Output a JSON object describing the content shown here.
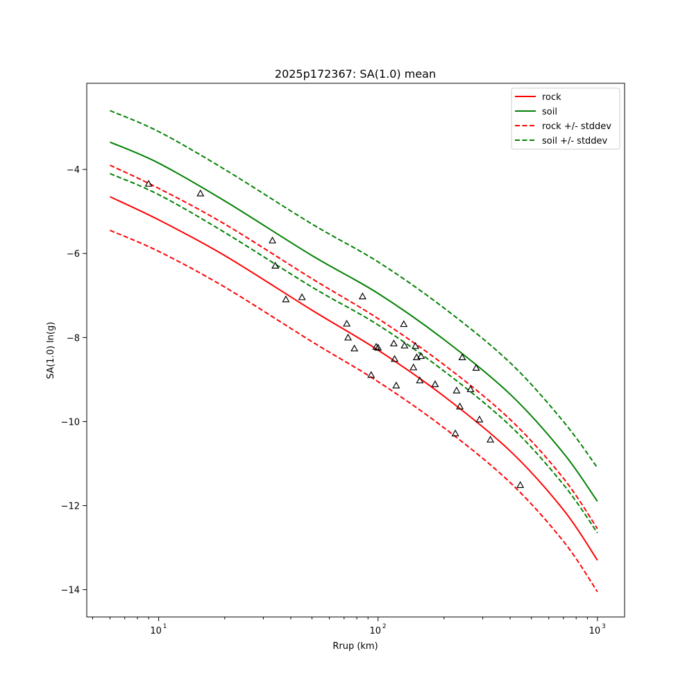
{
  "chart_data": {
    "type": "line",
    "title": "2025p172367: SA(1.0) mean",
    "xlabel": "Rrup (km)",
    "ylabel": "SA(1.0) ln(g)",
    "xscale": "log",
    "xlim": [
      4.7,
      1330
    ],
    "ylim": [
      -14.65,
      -1.95
    ],
    "xticks": [
      10,
      100,
      1000
    ],
    "xtick_labels": [
      "10",
      "10",
      "10"
    ],
    "xtick_exponents": [
      "1",
      "2",
      "3"
    ],
    "yticks": [
      -14,
      -12,
      -10,
      -8,
      -6,
      -4
    ],
    "ytick_labels": [
      "−14",
      "−12",
      "−10",
      "−8",
      "−6",
      "−4"
    ],
    "grid": false,
    "legend_position": "top-right",
    "colors": {
      "rock": "#ff0000",
      "soil": "#008000",
      "markers": "#000000"
    },
    "series": [
      {
        "name": "rock",
        "style": "solid",
        "color": "#ff0000",
        "x": [
          6,
          10,
          20,
          50,
          100,
          200,
          400,
          700,
          1000
        ],
        "y": [
          -4.65,
          -5.2,
          -6.05,
          -7.35,
          -8.3,
          -9.4,
          -10.7,
          -12.1,
          -13.3
        ]
      },
      {
        "name": "soil",
        "style": "solid",
        "color": "#008000",
        "x": [
          6,
          10,
          20,
          50,
          100,
          200,
          400,
          700,
          1000
        ],
        "y": [
          -3.35,
          -3.85,
          -4.75,
          -6.05,
          -6.95,
          -8.05,
          -9.35,
          -10.75,
          -11.9
        ]
      },
      {
        "name": "rock +/- stddev",
        "style": "dashed",
        "color": "#ff0000",
        "x": [
          6,
          10,
          20,
          50,
          100,
          200,
          400,
          700,
          1000
        ],
        "y": [
          -3.9,
          -4.45,
          -5.3,
          -6.6,
          -7.55,
          -8.65,
          -9.95,
          -11.35,
          -12.55
        ]
      },
      {
        "name": "",
        "style": "dashed",
        "color": "#ff0000",
        "x": [
          6,
          10,
          20,
          50,
          100,
          200,
          400,
          700,
          1000
        ],
        "y": [
          -5.45,
          -5.95,
          -6.8,
          -8.1,
          -9.05,
          -10.15,
          -11.45,
          -12.85,
          -14.05
        ]
      },
      {
        "name": "soil +/- stddev",
        "style": "dashed",
        "color": "#008000",
        "x": [
          6,
          10,
          20,
          50,
          100,
          200,
          400,
          700,
          1000
        ],
        "y": [
          -4.1,
          -4.6,
          -5.5,
          -6.8,
          -7.7,
          -8.8,
          -10.1,
          -11.5,
          -12.65
        ]
      },
      {
        "name": "",
        "style": "dashed",
        "color": "#008000",
        "x": [
          6,
          10,
          20,
          50,
          100,
          200,
          400,
          700,
          1000
        ],
        "y": [
          -2.6,
          -3.1,
          -4.0,
          -5.3,
          -6.2,
          -7.3,
          -8.6,
          -10.0,
          -11.1
        ]
      }
    ],
    "points": {
      "marker": "triangle",
      "x": [
        9,
        15.5,
        33,
        34,
        38,
        45,
        72,
        73,
        78,
        85,
        93,
        98,
        100,
        118,
        119,
        121,
        131,
        132,
        145,
        148,
        150,
        155,
        157,
        182,
        225,
        228,
        236,
        242,
        264,
        280,
        290,
        325,
        445
      ],
      "y": [
        -4.35,
        -4.58,
        -5.7,
        -6.3,
        -7.1,
        -7.05,
        -7.68,
        -8.01,
        -8.27,
        -7.03,
        -8.9,
        -8.23,
        -8.25,
        -8.15,
        -8.52,
        -9.15,
        -7.69,
        -8.2,
        -8.72,
        -8.21,
        -8.48,
        -9.03,
        -8.45,
        -9.12,
        -10.29,
        -9.27,
        -9.65,
        -8.48,
        -9.24,
        -8.73,
        -9.96,
        -10.44,
        -11.52
      ]
    },
    "legend": [
      {
        "label": "rock",
        "color": "#ff0000",
        "style": "solid"
      },
      {
        "label": "soil",
        "color": "#008000",
        "style": "solid"
      },
      {
        "label": "rock +/- stddev",
        "color": "#ff0000",
        "style": "dashed"
      },
      {
        "label": "soil +/- stddev",
        "color": "#008000",
        "style": "dashed"
      }
    ]
  }
}
